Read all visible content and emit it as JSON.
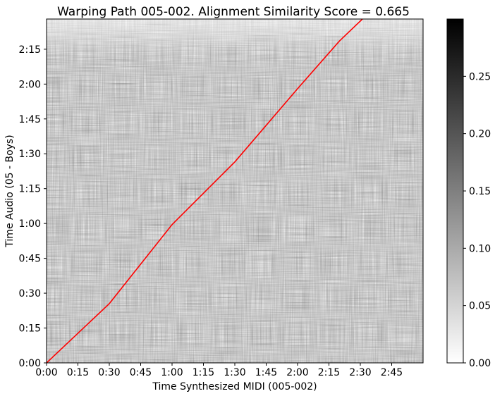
{
  "chart_data": {
    "type": "heatmap",
    "title": "Warping Path 005-002. Alignment Similarity Score = 0.665",
    "xlabel": "Time Synthesized MIDI (005-002)",
    "ylabel": "Time Audio (05 - Boys)",
    "x_unit": "seconds",
    "y_unit": "seconds",
    "xlim": [
      0,
      180
    ],
    "ylim": [
      0,
      148
    ],
    "xticks": [
      {
        "value": 0,
        "label": "0:00"
      },
      {
        "value": 15,
        "label": "0:15"
      },
      {
        "value": 30,
        "label": "0:30"
      },
      {
        "value": 45,
        "label": "0:45"
      },
      {
        "value": 60,
        "label": "1:00"
      },
      {
        "value": 75,
        "label": "1:15"
      },
      {
        "value": 90,
        "label": "1:30"
      },
      {
        "value": 105,
        "label": "1:45"
      },
      {
        "value": 120,
        "label": "2:00"
      },
      {
        "value": 135,
        "label": "2:15"
      },
      {
        "value": 150,
        "label": "2:30"
      },
      {
        "value": 165,
        "label": "2:45"
      }
    ],
    "yticks": [
      {
        "value": 0,
        "label": "0:00"
      },
      {
        "value": 15,
        "label": "0:15"
      },
      {
        "value": 30,
        "label": "0:30"
      },
      {
        "value": 45,
        "label": "0:45"
      },
      {
        "value": 60,
        "label": "1:00"
      },
      {
        "value": 75,
        "label": "1:15"
      },
      {
        "value": 90,
        "label": "1:30"
      },
      {
        "value": 105,
        "label": "1:45"
      },
      {
        "value": 120,
        "label": "2:00"
      },
      {
        "value": 135,
        "label": "2:15"
      }
    ],
    "colorbar": {
      "colormap": "gray_r",
      "range": [
        0,
        0.3
      ],
      "ticks": [
        {
          "value": 0.0,
          "label": "0.00"
        },
        {
          "value": 0.05,
          "label": "0.05"
        },
        {
          "value": 0.1,
          "label": "0.10"
        },
        {
          "value": 0.15,
          "label": "0.15"
        },
        {
          "value": 0.2,
          "label": "0.20"
        },
        {
          "value": 0.25,
          "label": "0.25"
        }
      ]
    },
    "heatmap_texture": "dense noisy cost matrix, mostly mid-gray (~0.10-0.15) with horizontal and vertical streaks; lighter band along the top edge",
    "warping_path": {
      "color": "#ff0000",
      "points": [
        [
          0,
          0
        ],
        [
          30,
          25.5
        ],
        [
          60,
          59.5
        ],
        [
          90,
          86.5
        ],
        [
          120,
          118
        ],
        [
          140,
          138.5
        ],
        [
          151,
          148
        ]
      ]
    },
    "grid": false,
    "legend": "none"
  }
}
